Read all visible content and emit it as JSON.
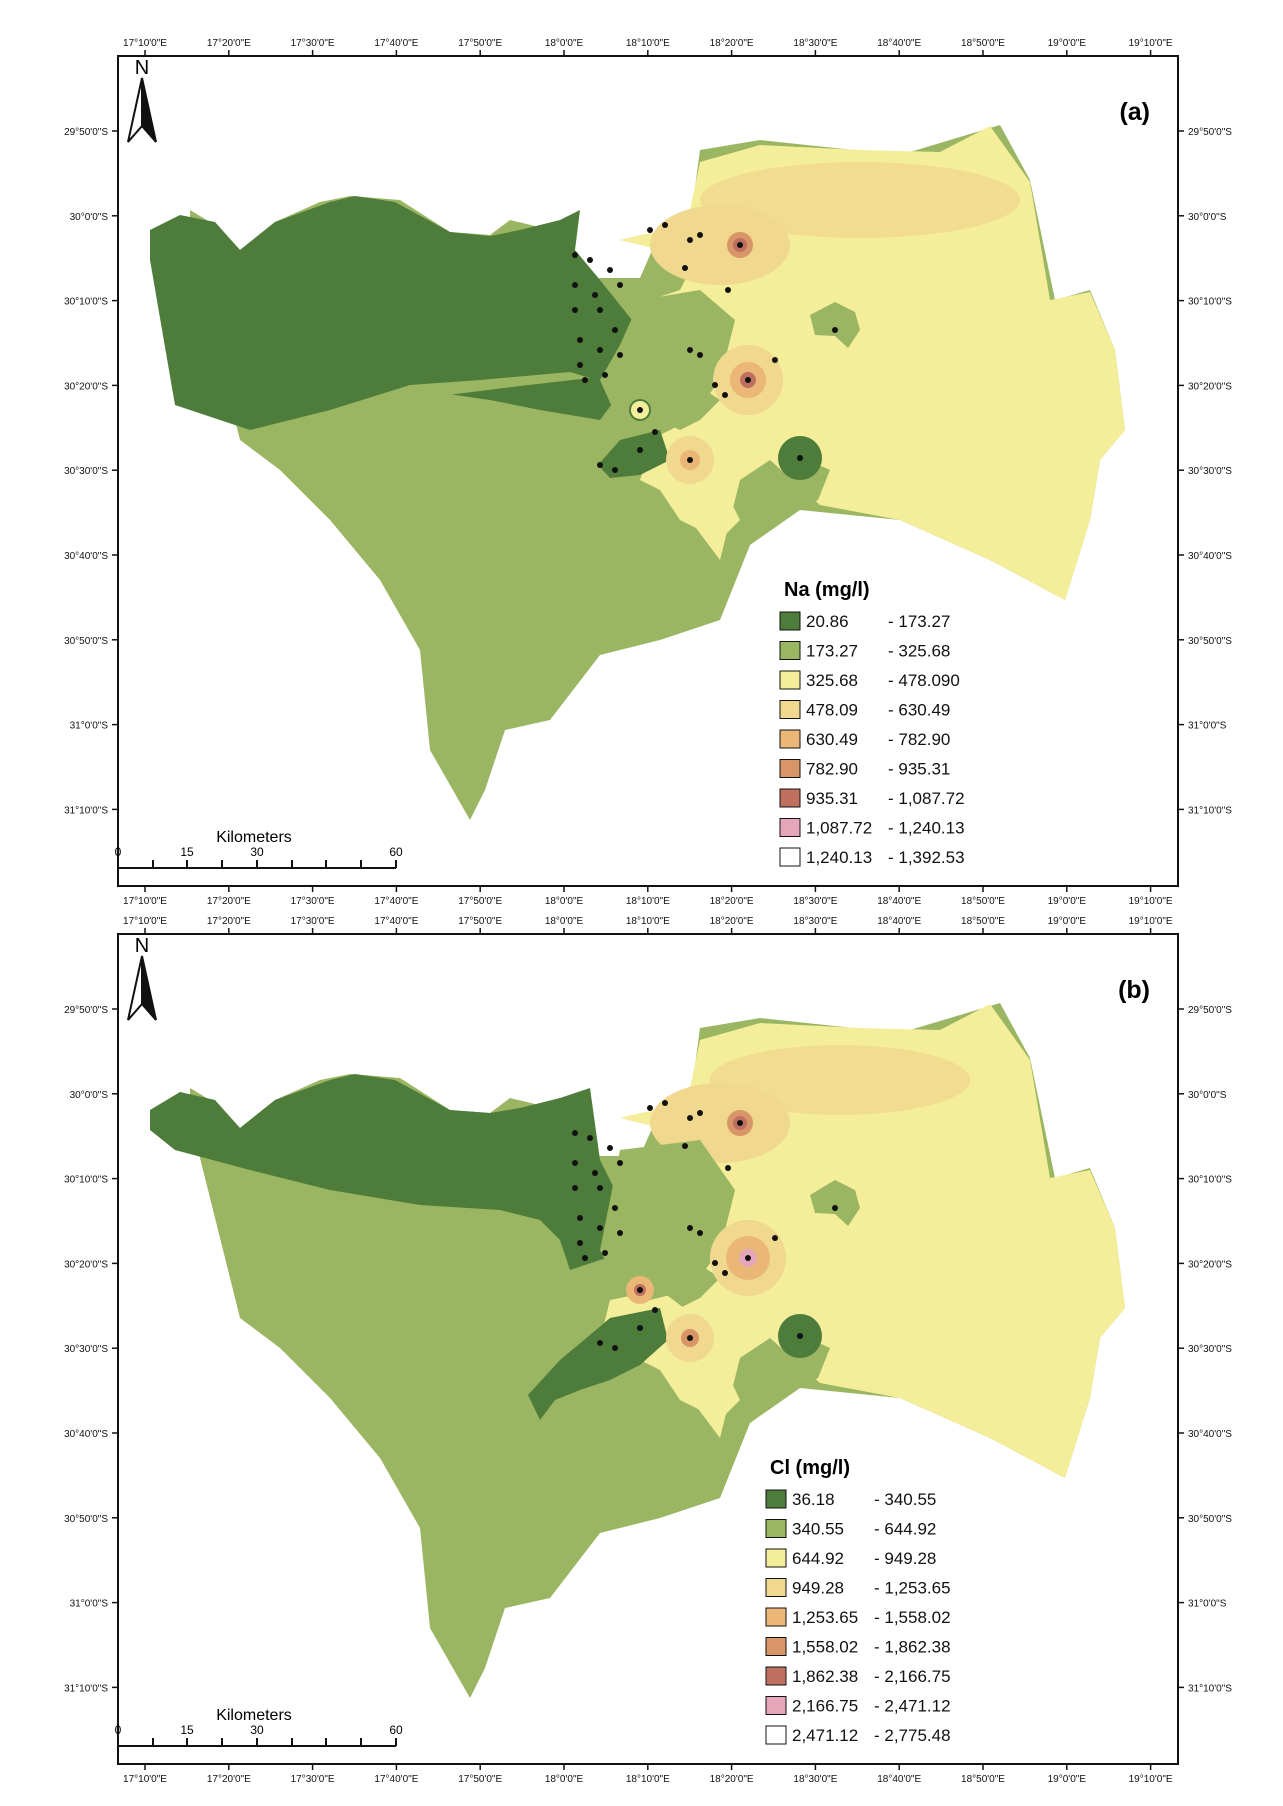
{
  "lon_ticks": [
    "17°10'0\"E",
    "17°20'0\"E",
    "17°30'0\"E",
    "17°40'0\"E",
    "17°50'0\"E",
    "18°0'0\"E",
    "18°10'0\"E",
    "18°20'0\"E",
    "18°30'0\"E",
    "18°40'0\"E",
    "18°50'0\"E",
    "19°0'0\"E",
    "19°10'0\"E"
  ],
  "lat_ticks": [
    "29°50'0\"S",
    "30°0'0\"S",
    "30°10'0\"S",
    "30°20'0\"S",
    "30°30'0\"S",
    "30°40'0\"S",
    "30°50'0\"S",
    "31°0'0\"S",
    "31°10'0\"S"
  ],
  "north_label": "N",
  "scale_bar": {
    "units": "Kilometers",
    "ticks": [
      "0",
      "15",
      "30",
      "60"
    ]
  },
  "colors": {
    "class1": "#4e7c3a",
    "class2": "#9ab662",
    "class3": "#f4ee9a",
    "class4": "#f0d88e",
    "class5": "#eab776",
    "class6": "#d79568",
    "class7": "#bf7060",
    "class8": "#e6a6ba",
    "class9": "#ffffff",
    "frame": "#111111"
  },
  "panels": [
    {
      "id": "a",
      "label": "(a)",
      "legend": {
        "title": "Na (mg/l)",
        "items": [
          {
            "low": "20.86",
            "high": "- 173.27"
          },
          {
            "low": "173.27",
            "high": "- 325.68"
          },
          {
            "low": "325.68",
            "high": "- 478.090"
          },
          {
            "low": "478.09",
            "high": "- 630.49"
          },
          {
            "low": "630.49",
            "high": "- 782.90"
          },
          {
            "low": "782.90",
            "high": "- 935.31"
          },
          {
            "low": "935.31",
            "high": "- 1,087.72"
          },
          {
            "low": "1,087.72",
            "high": "- 1,240.13"
          },
          {
            "low": "1,240.13",
            "high": "- 1,392.53"
          }
        ]
      }
    },
    {
      "id": "b",
      "label": "(b)",
      "legend": {
        "title": "Cl (mg/l)",
        "items": [
          {
            "low": "36.18",
            "high": "- 340.55"
          },
          {
            "low": "340.55",
            "high": "- 644.92"
          },
          {
            "low": "644.92",
            "high": "- 949.28"
          },
          {
            "low": "949.28",
            "high": "- 1,253.65"
          },
          {
            "low": "1,253.65",
            "high": "- 1,558.02"
          },
          {
            "low": "1,558.02",
            "high": "- 1,862.38"
          },
          {
            "low": "1,862.38",
            "high": "- 2,166.75"
          },
          {
            "low": "2,166.75",
            "high": "- 2,471.12"
          },
          {
            "low": "2,471.12",
            "high": "- 2,775.48"
          }
        ]
      }
    }
  ]
}
